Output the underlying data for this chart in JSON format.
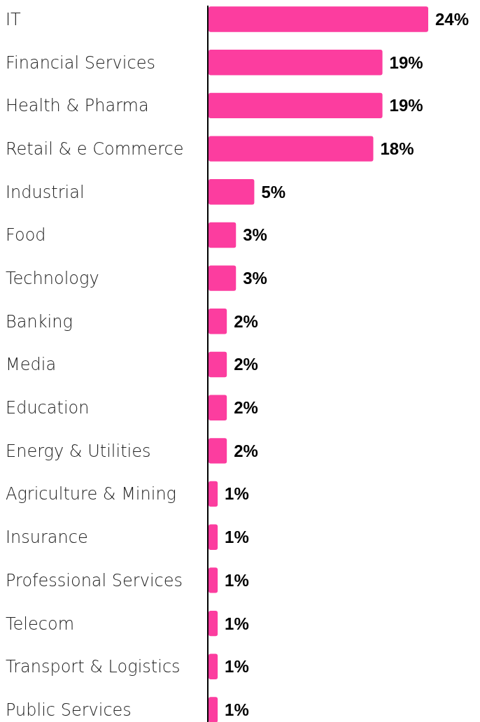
{
  "chart_data": {
    "type": "bar",
    "orientation": "horizontal",
    "color": "#fc3d9f",
    "categories": [
      "IT",
      "Financial Services",
      "Health & Pharma",
      "Retail & e Commerce",
      "Industrial",
      "Food",
      "Technology",
      "Banking",
      "Media",
      "Education",
      "Energy & Utilities",
      "Agriculture & Mining",
      "Insurance",
      "Professional Services",
      "Telecom",
      "Transport & Logistics",
      "Public Services"
    ],
    "values": [
      24,
      19,
      19,
      18,
      5,
      3,
      3,
      2,
      2,
      2,
      2,
      1,
      1,
      1,
      1,
      1,
      1
    ],
    "value_labels": [
      "24%",
      "19%",
      "19%",
      "18%",
      "5%",
      "3%",
      "3%",
      "2%",
      "2%",
      "2%",
      "2%",
      "1%",
      "1%",
      "1%",
      "1%",
      "1%",
      "1%"
    ]
  }
}
